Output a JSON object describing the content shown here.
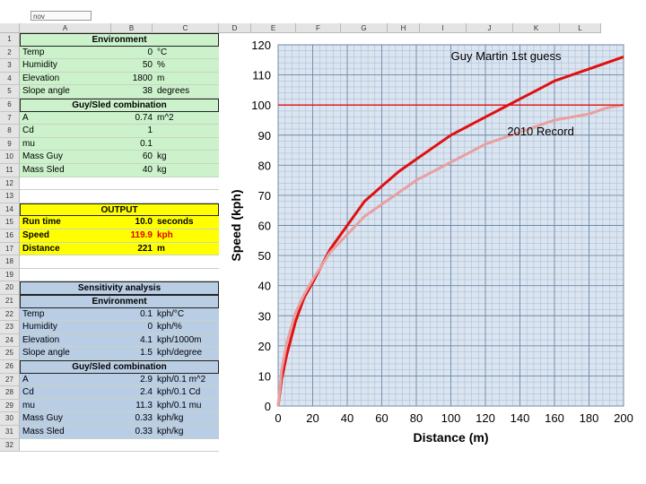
{
  "toolbar": {
    "combo_text": "nov"
  },
  "columns": [
    "A",
    "B",
    "C",
    "D",
    "E",
    "F",
    "G",
    "H",
    "I",
    "J",
    "K",
    "L"
  ],
  "rows": [
    {
      "type": "hdr",
      "cls": "g",
      "label": "Environment"
    },
    {
      "type": "data",
      "cls": "g",
      "label": "Temp",
      "value": "0",
      "unit": "°C"
    },
    {
      "type": "data",
      "cls": "g",
      "label": "Humidity",
      "value": "50",
      "unit": "%"
    },
    {
      "type": "data",
      "cls": "g",
      "label": "Elevation",
      "value": "1800",
      "unit": "m"
    },
    {
      "type": "data",
      "cls": "g",
      "label": "Slope angle",
      "value": "38",
      "unit": "degrees"
    },
    {
      "type": "hdr",
      "cls": "g",
      "label": "Guy/Sled combination"
    },
    {
      "type": "data",
      "cls": "g",
      "label": "A",
      "value": "0.74",
      "unit": "m^2"
    },
    {
      "type": "data",
      "cls": "g",
      "label": "Cd",
      "value": "1",
      "unit": ""
    },
    {
      "type": "data",
      "cls": "g",
      "label": "mu",
      "value": "0.1",
      "unit": ""
    },
    {
      "type": "data",
      "cls": "g",
      "label": "Mass Guy",
      "value": "60",
      "unit": "kg"
    },
    {
      "type": "data",
      "cls": "g",
      "label": "Mass Sled",
      "value": "40",
      "unit": "kg"
    },
    {
      "type": "blank",
      "cls": "w",
      "label": "",
      "value": "",
      "unit": ""
    },
    {
      "type": "blank",
      "cls": "w",
      "label": "",
      "value": "",
      "unit": ""
    },
    {
      "type": "hdr",
      "cls": "y",
      "label": "OUTPUT"
    },
    {
      "type": "data",
      "cls": "y",
      "label": "Run time",
      "value": "10.0",
      "unit": "seconds",
      "bold": true
    },
    {
      "type": "data",
      "cls": "y",
      "label": "Speed",
      "value": "119.9",
      "unit": "kph",
      "bold": true,
      "red": true
    },
    {
      "type": "data",
      "cls": "y",
      "label": "Distance",
      "value": "221",
      "unit": "m",
      "bold": true
    },
    {
      "type": "blank",
      "cls": "w",
      "label": "",
      "value": "",
      "unit": ""
    },
    {
      "type": "blank",
      "cls": "w",
      "label": "",
      "value": "",
      "unit": ""
    },
    {
      "type": "hdr",
      "cls": "b",
      "label": "Sensitivity analysis"
    },
    {
      "type": "hdr",
      "cls": "b",
      "label": "Environment"
    },
    {
      "type": "data",
      "cls": "b",
      "label": "Temp",
      "value": "0.1",
      "unit": "kph/°C"
    },
    {
      "type": "data",
      "cls": "b",
      "label": "Humidity",
      "value": "0",
      "unit": "kph/%"
    },
    {
      "type": "data",
      "cls": "b",
      "label": "Elevation",
      "value": "4.1",
      "unit": "kph/1000m"
    },
    {
      "type": "data",
      "cls": "b",
      "label": "Slope angle",
      "value": "1.5",
      "unit": "kph/degree"
    },
    {
      "type": "hdr",
      "cls": "b",
      "label": "Guy/Sled combination"
    },
    {
      "type": "data",
      "cls": "b",
      "label": "A",
      "value": "2.9",
      "unit": "kph/0.1 m^2"
    },
    {
      "type": "data",
      "cls": "b",
      "label": "Cd",
      "value": "2.4",
      "unit": "kph/0.1 Cd"
    },
    {
      "type": "data",
      "cls": "b",
      "label": "mu",
      "value": "11.3",
      "unit": "kph/0.1 mu"
    },
    {
      "type": "data",
      "cls": "b",
      "label": "Mass Guy",
      "value": "0.33",
      "unit": "kph/kg"
    },
    {
      "type": "data",
      "cls": "b",
      "label": "Mass Sled",
      "value": "0.33",
      "unit": "kph/kg"
    },
    {
      "type": "blank",
      "cls": "w",
      "label": "",
      "value": "",
      "unit": ""
    }
  ],
  "chart_data": {
    "type": "line",
    "xlabel": "Distance (m)",
    "ylabel": "Speed (kph)",
    "xlim": [
      0,
      200
    ],
    "ylim": [
      0,
      120
    ],
    "xticks": [
      0,
      20,
      40,
      60,
      80,
      100,
      120,
      140,
      160,
      180,
      200
    ],
    "yticks": [
      0,
      10,
      20,
      30,
      40,
      50,
      60,
      70,
      80,
      90,
      100,
      110,
      120
    ],
    "grid": true,
    "series": [
      {
        "name": "Guy Martin 1st guess",
        "color": "#e01010",
        "x": [
          0,
          2,
          5,
          10,
          15,
          20,
          30,
          40,
          50,
          60,
          70,
          80,
          90,
          100,
          110,
          120,
          130,
          140,
          150,
          160,
          170,
          180,
          190,
          200
        ],
        "y": [
          0,
          9,
          17,
          28,
          36,
          41,
          52,
          60,
          68,
          73,
          78,
          82,
          86,
          90,
          93,
          96,
          99,
          102,
          105,
          108,
          110,
          112,
          114,
          116
        ]
      },
      {
        "name": "2010 Record",
        "color": "#e8a0a0",
        "x": [
          0,
          2,
          5,
          10,
          15,
          20,
          30,
          40,
          50,
          60,
          70,
          80,
          90,
          100,
          110,
          120,
          130,
          140,
          150,
          160,
          170,
          180,
          190,
          200
        ],
        "y": [
          0,
          12,
          21,
          31,
          37,
          42,
          51,
          57,
          63,
          67,
          71,
          75,
          78,
          81,
          84,
          87,
          89,
          91,
          93,
          95,
          96,
          97,
          99,
          100
        ]
      },
      {
        "name": "",
        "color": "#e01010",
        "x": [
          0,
          200
        ],
        "y": [
          100,
          100
        ]
      }
    ],
    "annotations": [
      {
        "text": "Guy Martin 1st guess",
        "x": 132,
        "y": 115
      },
      {
        "text": "2010 Record",
        "x": 152,
        "y": 90
      }
    ]
  }
}
